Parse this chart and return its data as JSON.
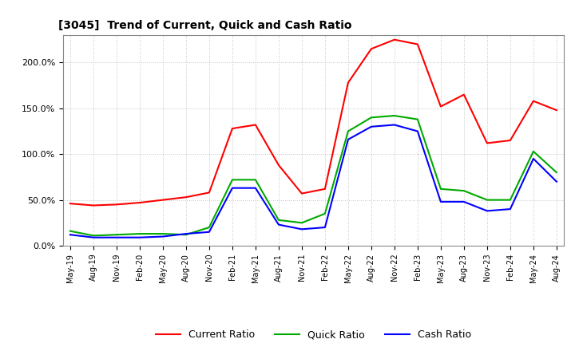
{
  "title": "[3045]  Trend of Current, Quick and Cash Ratio",
  "x_labels": [
    "May-19",
    "Aug-19",
    "Nov-19",
    "Feb-20",
    "May-20",
    "Aug-20",
    "Nov-20",
    "Feb-21",
    "May-21",
    "Aug-21",
    "Nov-21",
    "Feb-22",
    "May-22",
    "Aug-22",
    "Nov-22",
    "Feb-23",
    "May-23",
    "Aug-23",
    "Nov-23",
    "Feb-24",
    "May-24",
    "Aug-24"
  ],
  "current_ratio": [
    46,
    44,
    45,
    47,
    50,
    53,
    58,
    128,
    132,
    88,
    57,
    62,
    178,
    215,
    225,
    220,
    152,
    165,
    112,
    115,
    158,
    148
  ],
  "quick_ratio": [
    16,
    11,
    12,
    13,
    13,
    12,
    20,
    72,
    72,
    28,
    25,
    35,
    125,
    140,
    142,
    138,
    62,
    60,
    50,
    50,
    103,
    80
  ],
  "cash_ratio": [
    12,
    9,
    9,
    9,
    10,
    13,
    15,
    63,
    63,
    23,
    18,
    20,
    116,
    130,
    132,
    125,
    48,
    48,
    38,
    40,
    95,
    70
  ],
  "current_color": "#ff0000",
  "quick_color": "#00aa00",
  "cash_color": "#0000ff",
  "ylim": [
    0,
    230
  ],
  "yticks": [
    0,
    50,
    100,
    150,
    200
  ],
  "ytick_labels": [
    "0.0%",
    "50.0%",
    "100.0%",
    "150.0%",
    "200.0%"
  ],
  "bg_color": "#ffffff",
  "plot_bg_color": "#ffffff",
  "grid_color": "#b0b0b0",
  "legend_labels": [
    "Current Ratio",
    "Quick Ratio",
    "Cash Ratio"
  ]
}
